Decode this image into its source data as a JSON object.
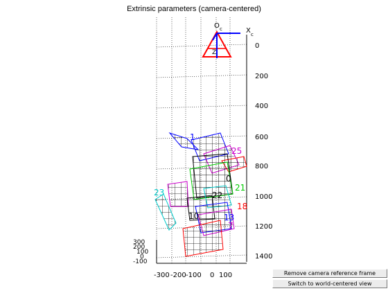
{
  "figure": {
    "title": "Extrinsic parameters (camera-centered)"
  },
  "axes": {
    "x_ticks": [
      "-300",
      "-200",
      "-100",
      "0",
      "100"
    ],
    "y_ticks": [
      "0",
      "200",
      "400",
      "600",
      "800",
      "1000",
      "1200",
      "1400"
    ],
    "z_ticks": [
      "300",
      "200",
      "100",
      "0",
      "-100"
    ],
    "camera_origin": "O",
    "camera_origin_sub": "c",
    "camera_x": "X",
    "camera_x_sub": "c",
    "camera_z": "Z"
  },
  "boards": [
    {
      "label": "1",
      "color": "#0000ff"
    },
    {
      "label": "25",
      "color": "#cc00cc"
    },
    {
      "label": "21",
      "color": "#00cc00"
    },
    {
      "label": "22",
      "color": "#000000"
    },
    {
      "label": "23",
      "color": "#00cccc"
    },
    {
      "label": "18",
      "color": "#ff0000"
    },
    {
      "label": "10",
      "color": "#000000"
    },
    {
      "label": "13",
      "color": "#0000ff"
    },
    {
      "label": "7",
      "color": "#cc00cc"
    },
    {
      "label": "0",
      "color": "#000000"
    }
  ],
  "buttons": {
    "remove_camera_ref": "Remove camera reference frame",
    "switch_world_view": "Switch to world-centered view"
  },
  "colors": {
    "camera_frame": "#ff0000",
    "camera_axes": "#0000ff"
  }
}
